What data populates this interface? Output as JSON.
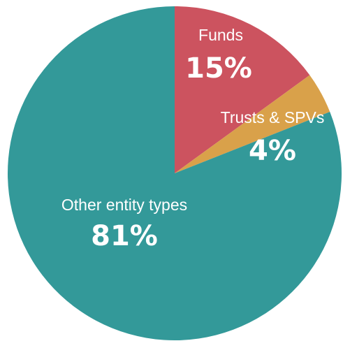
{
  "chart_data": {
    "type": "pie",
    "categories": [
      "Funds",
      "Trusts & SPVs",
      "Other entity types"
    ],
    "values": [
      15,
      4,
      81
    ],
    "value_labels": [
      "15%",
      "4%",
      "81%"
    ],
    "colors": [
      "#cc535f",
      "#d9a14a",
      "#339999"
    ]
  }
}
